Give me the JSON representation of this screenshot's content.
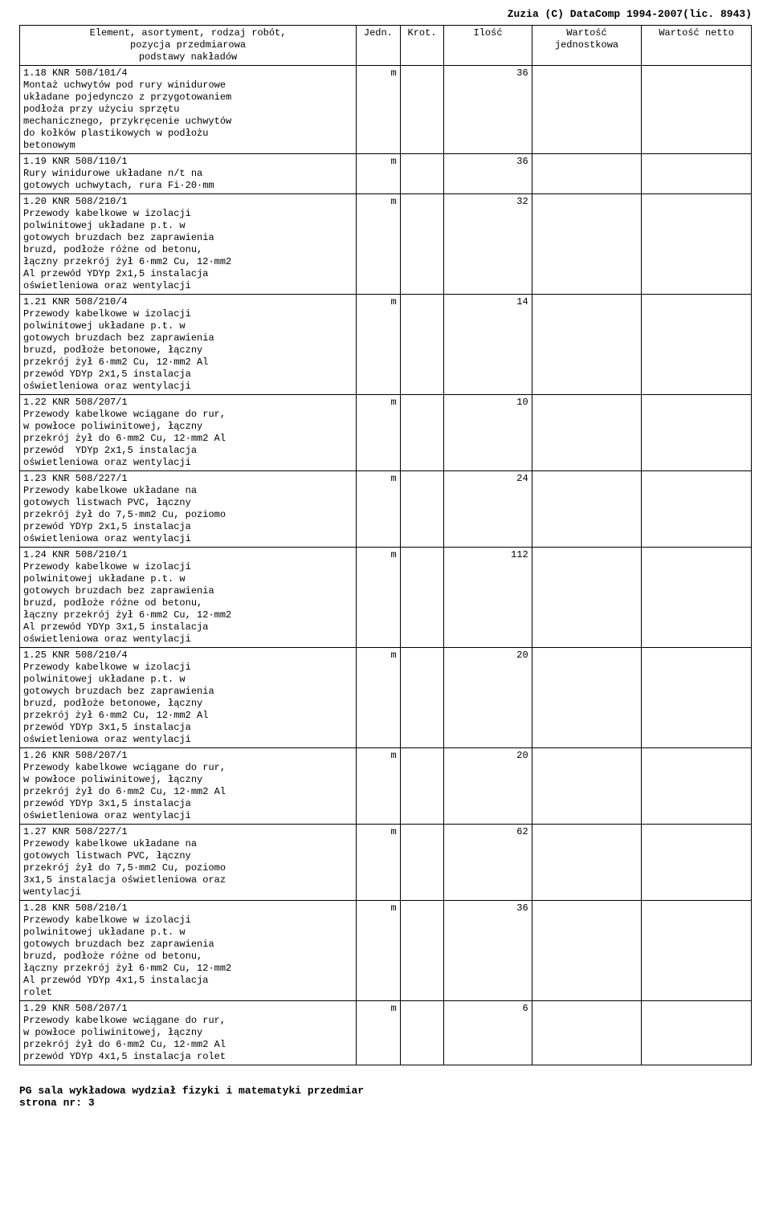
{
  "topRight": "Zuzia (C) DataComp 1994-2007(lic. 8943)",
  "headers": {
    "col1": "Element, asortyment, rodzaj robót,\npozycja przedmiarowa\npodstawy nakładów",
    "col2": "Jedn.",
    "col3": "Krot.",
    "col4": "Ilość",
    "col5": "Wartość jednostkowa",
    "col6": "Wartość netto"
  },
  "rows": [
    {
      "idx": "1.18",
      "desc": "KNR 508/101/4\nMontaż uchwytów pod rury winidurowe\nukładane pojedynczo z przygotowaniem\npodłoża przy użyciu sprzętu\nmechanicznego, przykręcenie uchwytów\ndo kołków plastikowych w podłożu\nbetonowym",
      "jedn": "m",
      "ilosc": "36"
    },
    {
      "idx": "1.19",
      "desc": "KNR 508/110/1\nRury winidurowe układane n/t na\ngotowych uchwytach, rura Fi·20·mm",
      "jedn": "m",
      "ilosc": "36"
    },
    {
      "idx": "1.20",
      "desc": "KNR 508/210/1\nPrzewody kabelkowe w izolacji\npolwinitowej układane p.t. w\ngotowych bruzdach bez zaprawienia\nbruzd, podłoże różne od betonu,\nłączny przekrój żył 6·mm2 Cu, 12·mm2\nAl przewód YDYp 2x1,5 instalacja\noświetleniowa oraz wentylacji",
      "jedn": "m",
      "ilosc": "32"
    },
    {
      "idx": "1.21",
      "desc": "KNR 508/210/4\nPrzewody kabelkowe w izolacji\npolwinitowej układane p.t. w\ngotowych bruzdach bez zaprawienia\nbruzd, podłoże betonowe, łączny\nprzekrój żył 6·mm2 Cu, 12·mm2 Al\nprzewód YDYp 2x1,5 instalacja\noświetleniowa oraz wentylacji",
      "jedn": "m",
      "ilosc": "14"
    },
    {
      "idx": "1.22",
      "desc": "KNR 508/207/1\nPrzewody kabelkowe wciągane do rur,\nw powłoce poliwinitowej, łączny\nprzekrój żył do 6·mm2 Cu, 12·mm2 Al\nprzewód  YDYp 2x1,5 instalacja\noświetleniowa oraz wentylacji",
      "jedn": "m",
      "ilosc": "10"
    },
    {
      "idx": "1.23",
      "desc": "KNR 508/227/1\nPrzewody kabelkowe układane na\ngotowych listwach PVC, łączny\nprzekrój żył do 7,5·mm2 Cu, poziomo\nprzewód YDYp 2x1,5 instalacja\noświetleniowa oraz wentylacji",
      "jedn": "m",
      "ilosc": "24"
    },
    {
      "idx": "1.24",
      "desc": "KNR 508/210/1\nPrzewody kabelkowe w izolacji\npolwinitowej układane p.t. w\ngotowych bruzdach bez zaprawienia\nbruzd, podłoże różne od betonu,\nłączny przekrój żył 6·mm2 Cu, 12·mm2\nAl przewód YDYp 3x1,5 instalacja\noświetleniowa oraz wentylacji",
      "jedn": "m",
      "ilosc": "112"
    },
    {
      "idx": "1.25",
      "desc": "KNR 508/210/4\nPrzewody kabelkowe w izolacji\npolwinitowej układane p.t. w\ngotowych bruzdach bez zaprawienia\nbruzd, podłoże betonowe, łączny\nprzekrój żył 6·mm2 Cu, 12·mm2 Al\nprzewód YDYp 3x1,5 instalacja\noświetleniowa oraz wentylacji",
      "jedn": "m",
      "ilosc": "20"
    },
    {
      "idx": "1.26",
      "desc": "KNR 508/207/1\nPrzewody kabelkowe wciągane do rur,\nw powłoce poliwinitowej, łączny\nprzekrój żył do 6·mm2 Cu, 12·mm2 Al\nprzewód YDYp 3x1,5 instalacja\noświetleniowa oraz wentylacji",
      "jedn": "m",
      "ilosc": "20"
    },
    {
      "idx": "1.27",
      "desc": "KNR 508/227/1\nPrzewody kabelkowe układane na\ngotowych listwach PVC, łączny\nprzekrój żył do 7,5·mm2 Cu, poziomo\n3x1,5 instalacja oświetleniowa oraz\nwentylacji",
      "jedn": "m",
      "ilosc": "62"
    },
    {
      "idx": "1.28",
      "desc": "KNR 508/210/1\nPrzewody kabelkowe w izolacji\npolwinitowej układane p.t. w\ngotowych bruzdach bez zaprawienia\nbruzd, podłoże różne od betonu,\nłączny przekrój żył 6·mm2 Cu, 12·mm2\nAl przewód YDYp 4x1,5 instalacja\nrolet",
      "jedn": "m",
      "ilosc": "36"
    },
    {
      "idx": "1.29",
      "desc": "KNR 508/207/1\nPrzewody kabelkowe wciągane do rur,\nw powłoce poliwinitowej, łączny\nprzekrój żył do 6·mm2 Cu, 12·mm2 Al\nprzewód YDYp 4x1,5 instalacja rolet",
      "jedn": "m",
      "ilosc": "6"
    }
  ],
  "footer": {
    "line1": "PG sala wykładowa wydział fizyki i matematyki przedmiar",
    "line2": "strona nr:   3"
  }
}
